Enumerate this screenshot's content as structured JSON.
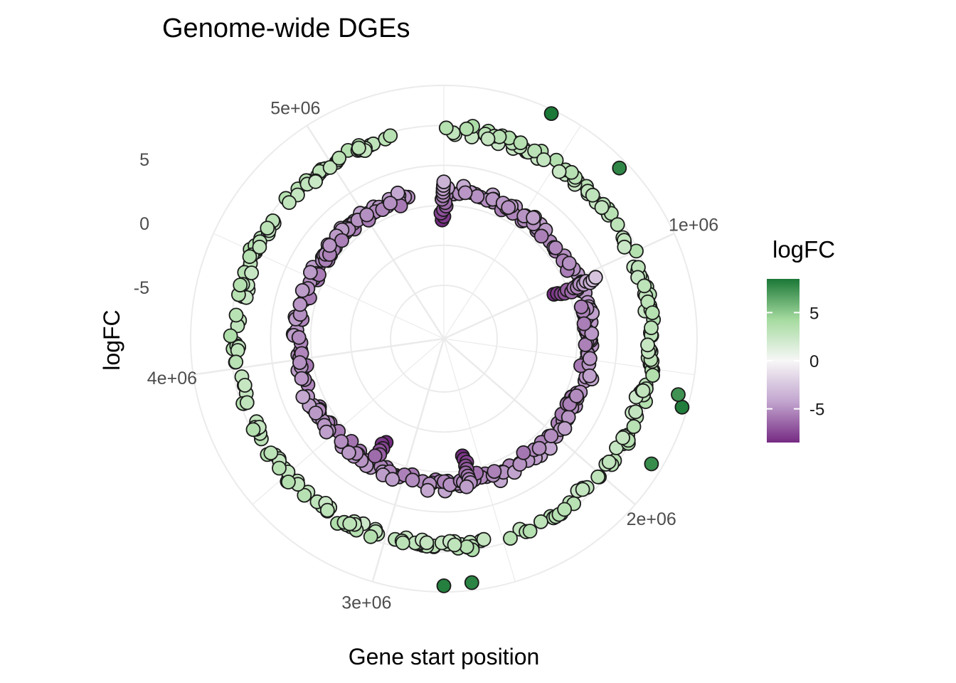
{
  "chart_data": {
    "type": "scatter",
    "coordinate_system": "polar",
    "title": "Genome-wide DGEs",
    "xlabel": "Gene start position",
    "ylabel": "logFC",
    "x_ticks": [
      "1e+06",
      "2e+06",
      "3e+06",
      "4e+06",
      "5e+06"
    ],
    "x_tick_values": [
      1000000,
      2000000,
      3000000,
      4000000,
      5000000
    ],
    "xlim": [
      0,
      5500000
    ],
    "y_ticks": [
      "5",
      "0",
      "-5"
    ],
    "y_tick_values": [
      5,
      0,
      -5
    ],
    "ylim": [
      -17,
      9
    ],
    "grid": true,
    "legend": {
      "title": "logFC",
      "position": "right",
      "type": "colorbar",
      "ticks": [
        "5",
        "0",
        "-5"
      ],
      "tick_values": [
        5,
        0,
        -5
      ],
      "range": [
        -8.5,
        8.5
      ],
      "low_color": "#762a83",
      "mid_color": "#f7f7f7",
      "high_color": "#1b7837"
    },
    "points_note": "x = gene start position (bp), y = logFC; color encodes logFC",
    "points": []
  }
}
